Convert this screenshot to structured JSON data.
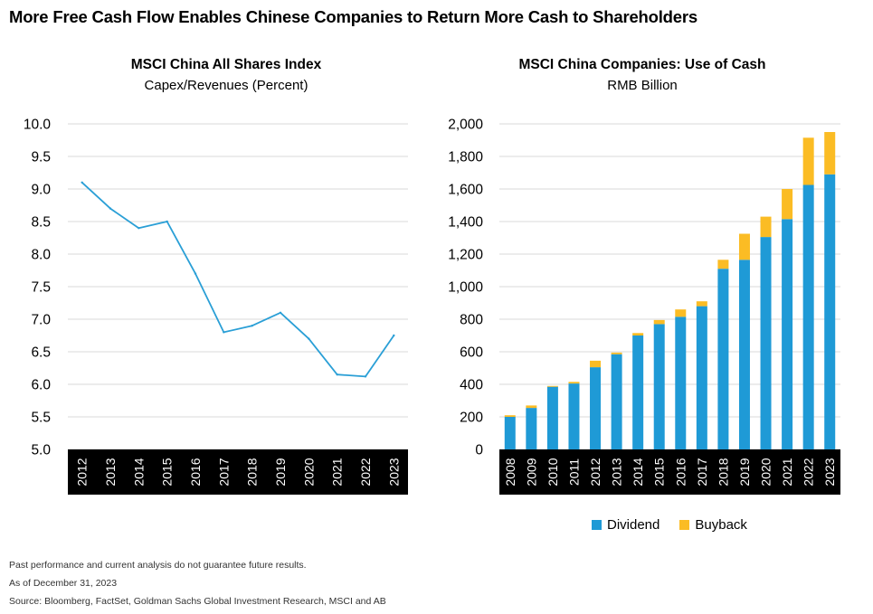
{
  "page": {
    "title": "More Free Cash Flow Enables Chinese Companies to Return More Cash to Shareholders"
  },
  "colors": {
    "line": "#2a9fd6",
    "dividend": "#1f9ad6",
    "buyback": "#fbbc24",
    "axis_band": "#000000",
    "grid": "#d9d9d9"
  },
  "chart_data": [
    {
      "type": "line",
      "title": "MSCI China All Shares Index",
      "subtitle": "Capex/Revenues (Percent)",
      "x": [
        "2012",
        "2013",
        "2014",
        "2015",
        "2016",
        "2017",
        "2018",
        "2019",
        "2020",
        "2021",
        "2022",
        "2023"
      ],
      "series": [
        {
          "values": [
            9.1,
            8.7,
            8.4,
            8.5,
            7.7,
            6.8,
            6.9,
            7.1,
            6.7,
            6.15,
            6.12,
            6.75
          ]
        }
      ],
      "ylim": [
        5.0,
        10.0
      ],
      "yticks": [
        "5.0",
        "5.5",
        "6.0",
        "6.5",
        "7.0",
        "7.5",
        "8.0",
        "8.5",
        "9.0",
        "9.5",
        "10.0"
      ],
      "grid": true
    },
    {
      "type": "bar",
      "stacked": true,
      "title": "MSCI China Companies: Use of Cash",
      "subtitle": "RMB Billion",
      "categories": [
        "2008",
        "2009",
        "2010",
        "2011",
        "2012",
        "2013",
        "2014",
        "2015",
        "2016",
        "2017",
        "2018",
        "2019",
        "2020",
        "2021",
        "2022",
        "2023"
      ],
      "series": [
        {
          "name": "Dividend",
          "values": [
            200,
            255,
            385,
            405,
            505,
            585,
            700,
            770,
            815,
            880,
            1110,
            1165,
            1305,
            1415,
            1625,
            1690
          ]
        },
        {
          "name": "Buyback",
          "values": [
            10,
            15,
            5,
            10,
            40,
            10,
            15,
            25,
            45,
            30,
            55,
            160,
            125,
            185,
            290,
            260
          ]
        }
      ],
      "ylim": [
        0,
        2000
      ],
      "yticks": [
        "0",
        "200",
        "400",
        "600",
        "800",
        "1,000",
        "1,200",
        "1,400",
        "1,600",
        "1,800",
        "2,000"
      ],
      "grid": true,
      "legend": "bottom"
    }
  ],
  "footnotes": [
    "Past performance and current analysis do not guarantee future results.",
    "As of December 31, 2023",
    "Source: Bloomberg, FactSet, Goldman Sachs Global Investment Research, MSCI and AB"
  ]
}
